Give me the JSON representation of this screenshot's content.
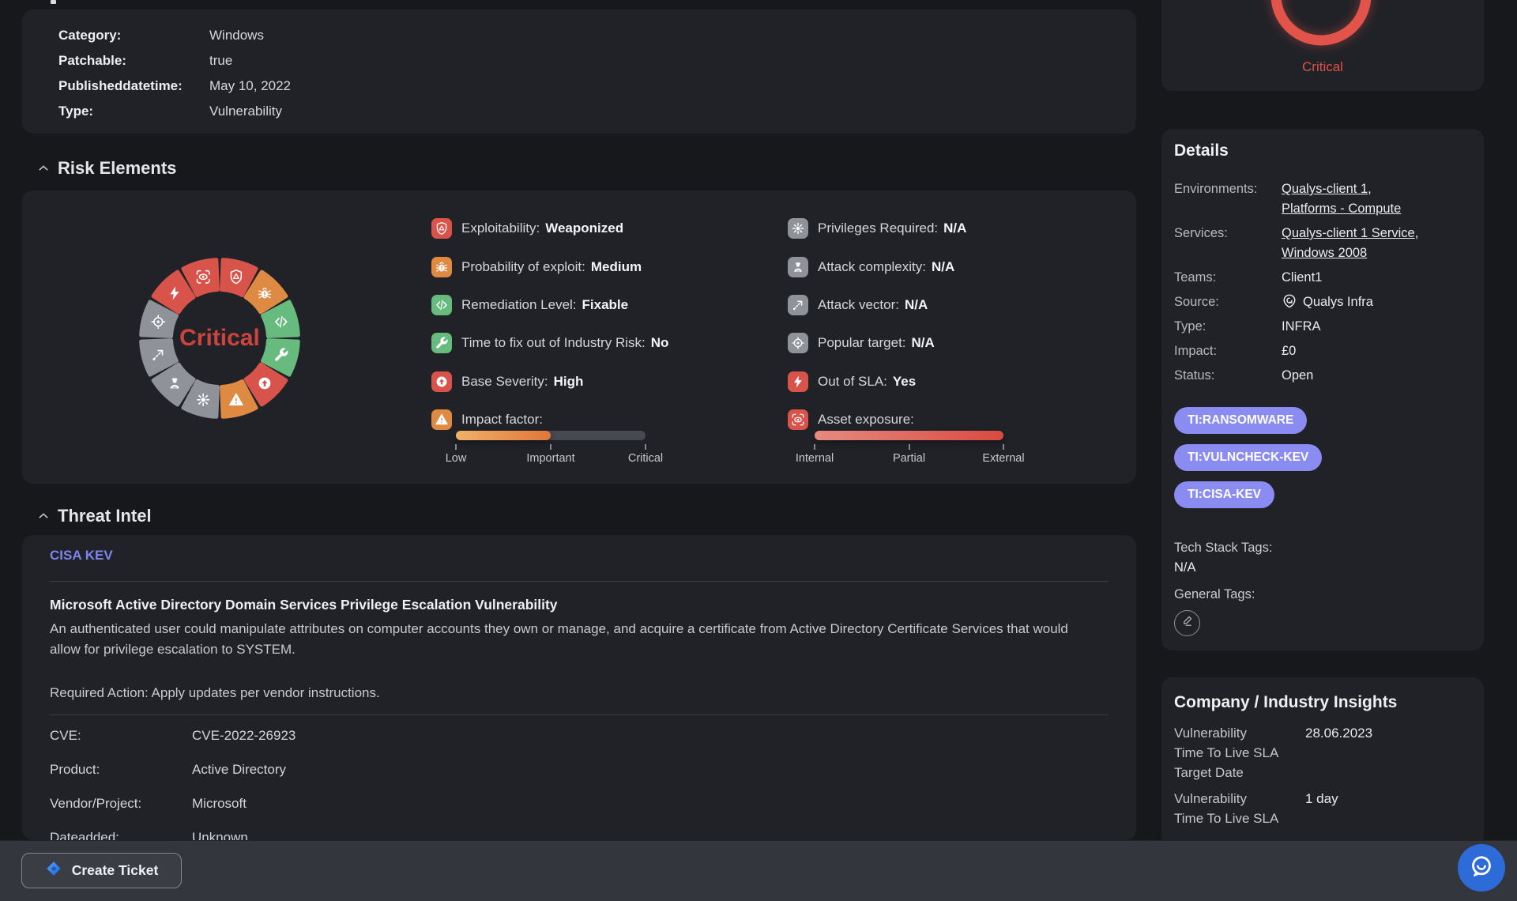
{
  "colors": {
    "red": "#d8544b",
    "orange": "#df8a43",
    "green": "#68bb7e",
    "gray": "#8f9298",
    "tag_purple": "#8a8cf1",
    "link_purple": "#7d84ee",
    "critical_red": "#cb443d",
    "ring_red": "#e2544a",
    "jira_blue": "#2684ff",
    "fab_blue": "#2d6bd9"
  },
  "summary": {
    "rows": [
      {
        "label": "Category:",
        "value": "Windows"
      },
      {
        "label": "Patchable:",
        "value": "true"
      },
      {
        "label": "Publisheddatetime:",
        "value": "May 10, 2022"
      },
      {
        "label": "Type:",
        "value": "Vulnerability"
      }
    ]
  },
  "risk": {
    "title": "Risk Elements",
    "gauge_label": "Critical",
    "segments": [
      {
        "icon": "shield-alert-icon",
        "color": "red"
      },
      {
        "icon": "bug-icon",
        "color": "orange"
      },
      {
        "icon": "code-icon",
        "color": "green"
      },
      {
        "icon": "wrench-icon",
        "color": "green"
      },
      {
        "icon": "arrow-up-circle-icon",
        "color": "red"
      },
      {
        "icon": "alert-triangle-icon",
        "color": "orange"
      },
      {
        "icon": "burst-icon",
        "color": "gray"
      },
      {
        "icon": "hacker-icon",
        "color": "gray"
      },
      {
        "icon": "trend-up-icon",
        "color": "gray"
      },
      {
        "icon": "crosshair-icon",
        "color": "gray"
      },
      {
        "icon": "lightning-icon",
        "color": "red"
      },
      {
        "icon": "eye-scan-icon",
        "color": "red"
      }
    ],
    "factors_left": [
      {
        "icon": "shield-alert-icon",
        "color": "red",
        "label": "Exploitability:",
        "value": "Weaponized"
      },
      {
        "icon": "bug-icon",
        "color": "orange",
        "label": "Probability of exploit:",
        "value": "Medium"
      },
      {
        "icon": "code-icon",
        "color": "green",
        "label": "Remediation Level:",
        "value": "Fixable"
      },
      {
        "icon": "wrench-icon",
        "color": "green",
        "label": "Time to fix out of Industry Risk:",
        "value": "No"
      },
      {
        "icon": "arrow-up-circle-icon",
        "color": "red",
        "label": "Base Severity:",
        "value": "High"
      },
      {
        "icon": "alert-triangle-icon",
        "color": "orange",
        "label": "Impact factor:",
        "value": ""
      }
    ],
    "factors_right": [
      {
        "icon": "burst-icon",
        "color": "gray",
        "label": "Privileges Required:",
        "value": "N/A"
      },
      {
        "icon": "hacker-icon",
        "color": "gray",
        "label": "Attack complexity:",
        "value": "N/A"
      },
      {
        "icon": "trend-up-icon",
        "color": "gray",
        "label": "Attack vector:",
        "value": "N/A"
      },
      {
        "icon": "crosshair-icon",
        "color": "gray",
        "label": "Popular target:",
        "value": "N/A"
      },
      {
        "icon": "lightning-icon",
        "color": "red",
        "label": "Out of SLA:",
        "value": "Yes"
      },
      {
        "icon": "eye-scan-icon",
        "color": "red",
        "label": "Asset exposure:",
        "value": ""
      }
    ],
    "impact_meter": {
      "ticks": [
        "Low",
        "Important",
        "Critical"
      ],
      "fill_ratio": 0.5,
      "fill_gradient": [
        "#f0b169",
        "#e0763c"
      ]
    },
    "exposure_meter": {
      "ticks": [
        "Internal",
        "Partial",
        "External"
      ],
      "fill_ratio": 1,
      "fill_gradient": [
        "#e58b7f",
        "#d94a40"
      ]
    }
  },
  "threat_intel": {
    "title": "Threat Intel",
    "source_tab": "CISA KEV",
    "headline": "Microsoft Active Directory Domain Services Privilege Escalation Vulnerability",
    "description": "An authenticated user could manipulate attributes on computer accounts they own or manage, and acquire a certificate from Active Directory Certificate Services that would allow for privilege escalation to SYSTEM.",
    "required_action": "Required Action: Apply updates per vendor instructions.",
    "rows": [
      {
        "label": "CVE:",
        "value": "CVE-2022-26923"
      },
      {
        "label": "Product:",
        "value": "Active Directory"
      },
      {
        "label": "Vendor/Project:",
        "value": "Microsoft"
      },
      {
        "label": "Dateadded:",
        "value": "Unknown"
      }
    ]
  },
  "severity_gauge": {
    "label": "Critical"
  },
  "details": {
    "title": "Details",
    "rows": [
      {
        "label": "Environments:",
        "links": [
          "Qualys-client 1",
          "Platforms - Compute"
        ]
      },
      {
        "label": "Services:",
        "links": [
          "Qualys-client 1 Service",
          "Windows 2008"
        ]
      },
      {
        "label": "Teams:",
        "text": "Client1"
      },
      {
        "label": "Source:",
        "text": "Qualys Infra",
        "icon": "qualys-icon"
      },
      {
        "label": "Type:",
        "text": "INFRA"
      },
      {
        "label": "Impact:",
        "text": "£0"
      },
      {
        "label": "Status:",
        "text": "Open"
      }
    ],
    "pills": [
      "TI:RANSOMWARE",
      "TI:VULNCHECK-KEV",
      "TI:CISA-KEV"
    ],
    "tech_stack_label": "Tech Stack Tags:",
    "tech_stack_value": "N/A",
    "general_tags_label": "General Tags:"
  },
  "company": {
    "title": "Company / Industry Insights",
    "rows": [
      {
        "label": "Vulnerability\nTime To Live SLA\nTarget Date",
        "value": "28.06.2023"
      },
      {
        "label": "Vulnerability\nTime To Live SLA",
        "value": "1 day"
      }
    ]
  },
  "footer": {
    "create_ticket_label": "Create Ticket"
  }
}
